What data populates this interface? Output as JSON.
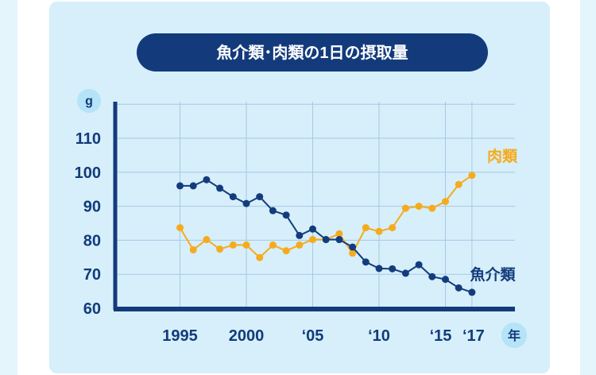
{
  "chart_data": {
    "type": "line",
    "title": "魚介類･肉類の1日の摂取量",
    "y_unit": "g",
    "x_unit": "年",
    "ylim": [
      60,
      120
    ],
    "y_ticks": [
      "60",
      "70",
      "80",
      "90",
      "100",
      "110"
    ],
    "x_ticks": [
      {
        "year": 1995,
        "label": "1995"
      },
      {
        "year": 2000,
        "label": "2000"
      },
      {
        "year": 2005,
        "label": "‘05"
      },
      {
        "year": 2010,
        "label": "‘10"
      },
      {
        "year": 2015,
        "label": "‘15"
      },
      {
        "year": 2017,
        "label": "‘17"
      }
    ],
    "x": [
      1995,
      1996,
      1997,
      1998,
      1999,
      2000,
      2001,
      2002,
      2003,
      2004,
      2005,
      2006,
      2007,
      2008,
      2009,
      2010,
      2011,
      2012,
      2013,
      2014,
      2015,
      2016,
      2017
    ],
    "grid": true,
    "colors": {
      "fish": "#143c7d",
      "meat": "#f6ab1c",
      "grid": "#a7c8e6",
      "axis": "#133b7c"
    },
    "series": [
      {
        "key": "fish",
        "name": "魚介類",
        "values": [
          96.0,
          96.0,
          97.8,
          95.3,
          92.8,
          90.8,
          92.8,
          88.7,
          87.4,
          81.4,
          83.3,
          80.2,
          80.2,
          78.0,
          73.6,
          71.7,
          71.6,
          70.3,
          72.8,
          69.3,
          68.5,
          66.0,
          64.7
        ]
      },
      {
        "key": "meat",
        "name": "肉類",
        "values": [
          83.7,
          77.2,
          80.2,
          77.4,
          78.6,
          78.6,
          74.9,
          78.6,
          76.9,
          78.6,
          80.2,
          80.2,
          81.9,
          76.2,
          83.7,
          82.6,
          83.7,
          89.4,
          90.0,
          89.4,
          91.4,
          96.4,
          99.1
        ]
      }
    ]
  }
}
